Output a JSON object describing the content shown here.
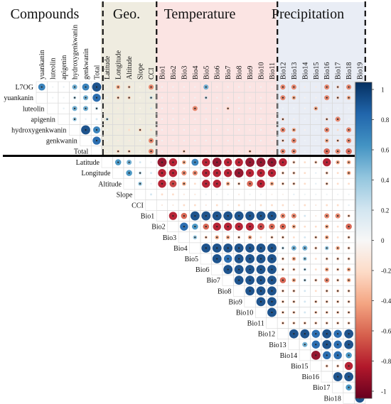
{
  "chart_data": {
    "type": "heatmap",
    "title": "",
    "groups": [
      {
        "name": "Compounds",
        "members": [
          "yuankanin",
          "luteolin",
          "apigenin",
          "hydroxygenkwanin",
          "genkwanin",
          "Total"
        ]
      },
      {
        "name": "Geo.",
        "members": [
          "Latitude",
          "Longitude",
          "Altitude",
          "Slope",
          "CCI"
        ]
      },
      {
        "name": "Temperature",
        "members": [
          "Bio1",
          "Bio2",
          "Bio3",
          "Bio4",
          "Bio5",
          "Bio6",
          "Bio7",
          "Bio8",
          "Bio9",
          "Bio10",
          "Bio11"
        ]
      },
      {
        "name": "Precipitation",
        "members": [
          "Bio12",
          "Bio13",
          "Bio14",
          "Bio15",
          "Bio16",
          "Bio17",
          "Bio18",
          "Bio19"
        ]
      }
    ],
    "compound_rows": [
      "L7OG",
      "yuankanin",
      "luteolin",
      "apigenin",
      "hydroxygenkwanin",
      "genkwanin",
      "Total"
    ],
    "compound_columns": [
      "yuankanin",
      "luteolin",
      "apigenin",
      "hydroxygenkwanin",
      "genkwanin",
      "Total"
    ],
    "variables": [
      "Latitude",
      "Longitude",
      "Altitude",
      "Slope",
      "CCI",
      "Bio1",
      "Bio2",
      "Bio3",
      "Bio4",
      "Bio5",
      "Bio6",
      "Bio7",
      "Bio8",
      "Bio9",
      "Bio10",
      "Bio11",
      "Bio12",
      "Bio13",
      "Bio14",
      "Bio15",
      "Bio16",
      "Bio17",
      "Bio18",
      "Bio19"
    ],
    "compound_matrix": [
      [
        0.7,
        0.05,
        0.1,
        0.5,
        0.7,
        0.9
      ],
      [
        null,
        0.05,
        0.05,
        0.3,
        0.5,
        0.8
      ],
      [
        null,
        null,
        0.1,
        0.5,
        0.5,
        0.3
      ],
      [
        null,
        null,
        null,
        0.4,
        0.1,
        0.2
      ],
      [
        null,
        null,
        null,
        null,
        0.9,
        0.7
      ],
      [
        null,
        null,
        null,
        null,
        null,
        0.8
      ],
      [
        null,
        null,
        null,
        null,
        null,
        null
      ]
    ],
    "compound_env_matrix": [
      [
        -0.05,
        -0.4,
        -0.3,
        -0.05,
        -0.5,
        0.05,
        0.05,
        0.05,
        0.05,
        0.5,
        -0.05,
        0.05,
        0.05,
        0.05,
        0.05,
        0.05,
        -0.5,
        -0.5,
        -0.1,
        -0.1,
        -0.5,
        -0.3,
        -0.5,
        -0.3
      ],
      [
        0.05,
        -0.3,
        -0.3,
        -0.05,
        0.3,
        0.05,
        0.05,
        0.05,
        0.05,
        0.3,
        0.05,
        0.05,
        0.05,
        -0.05,
        0.05,
        0.05,
        -0.5,
        -0.4,
        -0.05,
        -0.05,
        -0.5,
        -0.3,
        -0.4,
        -0.3
      ],
      [
        -0.05,
        -0.1,
        -0.1,
        -0.05,
        0.2,
        0.05,
        0.05,
        -0.05,
        -0.5,
        0.1,
        0.05,
        -0.3,
        0.05,
        0.05,
        0.05,
        0.05,
        0.05,
        0.05,
        -0.05,
        -0.4,
        0.05,
        0.05,
        0.05,
        0.05
      ],
      [
        0.3,
        -0.1,
        -0.1,
        -0.05,
        0.1,
        0.05,
        0.05,
        0.05,
        0.05,
        0.05,
        0.05,
        0.05,
        0.05,
        0.05,
        0.05,
        0.05,
        -0.3,
        -0.05,
        0.05,
        0.05,
        -0.3,
        -0.5,
        0.05,
        -0.3
      ],
      [
        0.05,
        -0.1,
        -0.2,
        -0.3,
        -0.2,
        0.05,
        0.05,
        0.05,
        0.05,
        0.05,
        0.05,
        0.05,
        0.05,
        -0.05,
        0.05,
        0.05,
        -0.5,
        -0.4,
        -0.05,
        0.05,
        -0.5,
        -0.2,
        -0.5,
        -0.5
      ],
      [
        0.05,
        -0.1,
        -0.1,
        0.05,
        -0.5,
        0.05,
        0.05,
        0.05,
        0.05,
        0.05,
        0.05,
        0.05,
        0.05,
        0.05,
        0.05,
        0.05,
        -0.3,
        -0.5,
        0.05,
        0.05,
        -0.4,
        -0.3,
        -0.5,
        -0.3
      ],
      [
        0.05,
        -0.3,
        -0.3,
        -0.05,
        -0.5,
        0.05,
        0.05,
        -0.3,
        0.05,
        0.05,
        0.05,
        0.05,
        0.05,
        -0.3,
        0.05,
        0.05,
        -0.5,
        -0.5,
        0.05,
        0.05,
        -0.6,
        -0.5,
        -0.6,
        -0.5
      ]
    ],
    "env_matrix": [
      [
        null,
        0.6,
        0.5,
        0.2,
        0.1,
        -0.9,
        -0.8,
        -0.4,
        0.7,
        -0.8,
        -0.9,
        -0.8,
        -0.8,
        -0.9,
        -0.9,
        -0.9,
        -0.8,
        -0.3,
        -0.2,
        -0.3,
        -0.8,
        -0.4,
        -0.4,
        -0.8
      ],
      [
        null,
        null,
        0.6,
        0.3,
        0.2,
        -0.8,
        -0.8,
        -0.5,
        -0.5,
        -0.8,
        -0.8,
        -0.8,
        -0.9,
        -0.8,
        -0.8,
        -0.8,
        -0.3,
        -0.3,
        -0.2,
        0.1,
        -0.3,
        -0.2,
        -0.4,
        -0.4
      ],
      [
        null,
        null,
        null,
        0.4,
        0.1,
        -0.8,
        -0.7,
        -0.4,
        -0.2,
        -0.8,
        -0.8,
        -0.4,
        -0.3,
        -0.6,
        -0.8,
        -0.4,
        -0.3,
        -0.3,
        -0.2,
        0.1,
        -0.3,
        -0.2,
        -0.2,
        -0.3
      ],
      [
        null,
        null,
        null,
        null,
        0.2,
        -0.2,
        -0.2,
        -0.1,
        -0.1,
        0.05,
        0.05,
        0.05,
        -0.1,
        0.05,
        0.05,
        -0.05,
        -0.05,
        0.1,
        0.05,
        0.05,
        0.05,
        0.05,
        0.05,
        0.05
      ],
      [
        null,
        null,
        null,
        null,
        null,
        -0.1,
        -0.1,
        -0.2,
        -0.2,
        -0.1,
        -0.2,
        -0.1,
        -0.2,
        -0.1,
        -0.2,
        -0.2,
        -0.2,
        -0.1,
        -0.2,
        -0.1,
        -0.2,
        -0.2,
        0.1,
        -0.1
      ],
      [
        null,
        null,
        null,
        null,
        null,
        null,
        -0.8,
        -0.6,
        0.9,
        0.9,
        0.9,
        0.9,
        0.9,
        0.9,
        0.9,
        0.9,
        -0.5,
        -0.5,
        0.2,
        -0.1,
        -0.5,
        -0.5,
        -0.3,
        -0.5
      ],
      [
        null,
        null,
        null,
        null,
        null,
        null,
        null,
        0.8,
        0.6,
        -0.6,
        -0.8,
        -0.8,
        -0.8,
        -0.8,
        -0.7,
        -0.6,
        -0.6,
        -0.4,
        -0.2,
        -0.2,
        -0.4,
        -0.2,
        -0.6,
        -0.6
      ],
      [
        null,
        null,
        null,
        null,
        null,
        null,
        null,
        null,
        0.4,
        -0.3,
        -0.4,
        -0.4,
        -0.3,
        -0.4,
        -0.2,
        -0.3,
        -0.3,
        -0.2,
        0.2,
        -0.3,
        -0.4,
        -0.2,
        -0.3,
        0.2
      ],
      [
        null,
        null,
        null,
        null,
        null,
        null,
        null,
        null,
        null,
        0.9,
        0.9,
        0.9,
        0.9,
        0.9,
        0.9,
        0.9,
        0.3,
        0.5,
        0.5,
        -0.3,
        0.4,
        -0.4,
        -0.3,
        -0.3
      ],
      [
        null,
        null,
        null,
        null,
        null,
        null,
        null,
        null,
        null,
        null,
        0.9,
        0.8,
        0.9,
        0.9,
        0.9,
        0.9,
        -0.3,
        -0.4,
        0.4,
        -0.2,
        -0.3,
        -0.3,
        -0.3,
        -0.3
      ],
      [
        null,
        null,
        null,
        null,
        null,
        null,
        null,
        null,
        null,
        null,
        null,
        0.9,
        0.9,
        0.9,
        0.9,
        0.9,
        -0.3,
        -0.3,
        0.3,
        -0.2,
        -0.4,
        -0.3,
        -0.4,
        -0.3
      ],
      [
        null,
        null,
        null,
        null,
        null,
        null,
        null,
        null,
        null,
        null,
        null,
        null,
        0.9,
        0.9,
        0.9,
        0.9,
        -0.6,
        -0.4,
        0.3,
        -0.3,
        -0.5,
        -0.3,
        -0.4,
        -0.4
      ],
      [
        null,
        null,
        null,
        null,
        null,
        null,
        null,
        null,
        null,
        null,
        null,
        null,
        null,
        0.9,
        0.9,
        0.9,
        -0.3,
        -0.3,
        0.2,
        -0.2,
        -0.3,
        -0.3,
        -0.3,
        -0.3
      ],
      [
        null,
        null,
        null,
        null,
        null,
        null,
        null,
        null,
        null,
        null,
        null,
        null,
        null,
        null,
        0.9,
        0.9,
        -0.3,
        -0.3,
        0.2,
        -0.3,
        -0.3,
        -0.3,
        -0.3,
        -0.3
      ],
      [
        null,
        null,
        null,
        null,
        null,
        null,
        null,
        null,
        null,
        null,
        null,
        null,
        null,
        null,
        null,
        0.9,
        -0.3,
        -0.3,
        0.2,
        -0.3,
        -0.3,
        -0.3,
        -0.3,
        -0.3
      ],
      [
        null,
        null,
        null,
        null,
        null,
        null,
        null,
        null,
        null,
        null,
        null,
        null,
        null,
        null,
        null,
        null,
        -0.3,
        -0.3,
        -0.3,
        -0.3,
        -0.3,
        -0.3,
        -0.3,
        -0.3
      ],
      [
        null,
        null,
        null,
        null,
        null,
        null,
        null,
        null,
        null,
        null,
        null,
        null,
        null,
        null,
        null,
        null,
        null,
        0.9,
        0.9,
        0.8,
        0.9,
        0.8,
        0.9,
        0.7
      ],
      [
        null,
        null,
        null,
        null,
        null,
        null,
        null,
        null,
        null,
        null,
        null,
        null,
        null,
        null,
        null,
        null,
        null,
        null,
        0.5,
        0.8,
        0.9,
        0.8,
        0.9,
        0.8
      ],
      [
        null,
        null,
        null,
        null,
        null,
        null,
        null,
        null,
        null,
        null,
        null,
        null,
        null,
        null,
        null,
        null,
        null,
        null,
        null,
        -0.9,
        0.8,
        0.8,
        0.6,
        0.9
      ],
      [
        null,
        null,
        null,
        null,
        null,
        null,
        null,
        null,
        null,
        null,
        null,
        null,
        null,
        null,
        null,
        null,
        null,
        null,
        null,
        null,
        -0.3,
        -0.3,
        -0.8,
        -0.3
      ],
      [
        null,
        null,
        null,
        null,
        null,
        null,
        null,
        null,
        null,
        null,
        null,
        null,
        null,
        null,
        null,
        null,
        null,
        null,
        null,
        null,
        null,
        0.9,
        0.9,
        0.9
      ],
      [
        null,
        null,
        null,
        null,
        null,
        null,
        null,
        null,
        null,
        null,
        null,
        null,
        null,
        null,
        null,
        null,
        null,
        null,
        null,
        null,
        null,
        null,
        0.6,
        0.9
      ],
      [
        null,
        null,
        null,
        null,
        null,
        null,
        null,
        null,
        null,
        null,
        null,
        null,
        null,
        null,
        null,
        null,
        null,
        null,
        null,
        null,
        null,
        null,
        null,
        0.9
      ],
      [
        null,
        null,
        null,
        null,
        null,
        null,
        null,
        null,
        null,
        null,
        null,
        null,
        null,
        null,
        null,
        null,
        null,
        null,
        null,
        null,
        null,
        null,
        null,
        null
      ]
    ],
    "significance_threshold": 0.3,
    "colorbar": {
      "min": -1,
      "max": 1,
      "ticks": [
        "1",
        "0.8",
        "0.6",
        "0.4",
        "0.2",
        "0",
        "-0.2",
        "-0.4",
        "-0.6",
        "-0.8",
        "-1"
      ],
      "stops": [
        "#67001f",
        "#b2182b",
        "#d6604d",
        "#f4a582",
        "#fddbc7",
        "#f7f7f7",
        "#d1e5f0",
        "#92c5de",
        "#4393c3",
        "#2166ac",
        "#053061"
      ]
    },
    "legend": "right",
    "grid": true
  }
}
